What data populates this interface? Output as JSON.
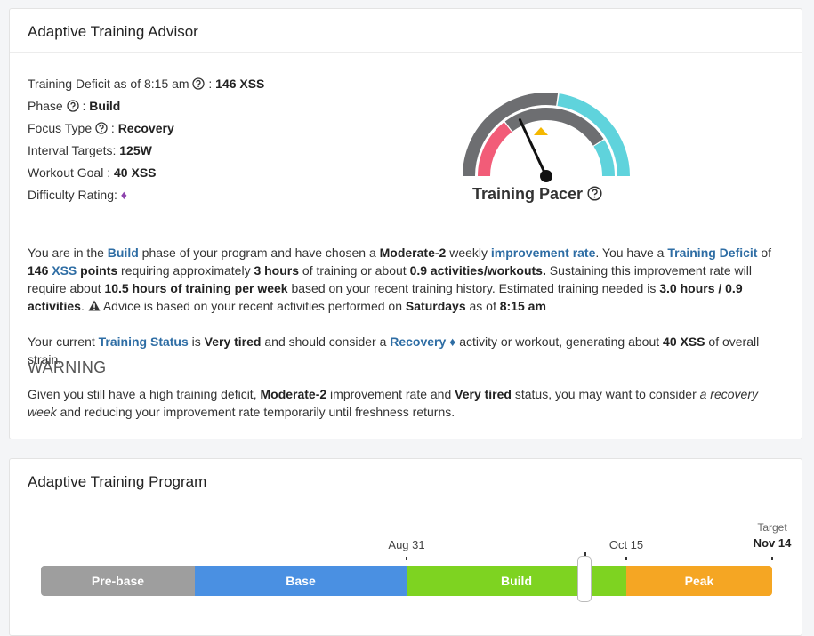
{
  "advisor": {
    "title": "Adaptive Training Advisor",
    "fields": [
      {
        "label": "Training Deficit as of 8:15 am",
        "separator": ":",
        "value": "146 XSS"
      },
      {
        "label": "Phase",
        "separator": ":",
        "value": "Build"
      },
      {
        "label": "Focus Type",
        "separator": ":",
        "value": "Recovery"
      },
      {
        "label": "Interval Targets:",
        "value": "125W"
      },
      {
        "label": "Workout Goal :",
        "value": "40 XSS"
      },
      {
        "label": "Difficulty Rating:",
        "value": "♦"
      }
    ],
    "pacer": "Training Pacer",
    "paragraph1": [
      "You are in the ",
      "Build",
      " phase of your program and have chosen a ",
      "Moderate-2",
      " weekly ",
      "improvement rate",
      ". You have a ",
      "Training Deficit",
      " of ",
      "146 ",
      "XSS",
      " points",
      " requiring approximately ",
      "3 hours",
      " of training or about ",
      "0.9 activities/workouts.",
      " Sustaining this improvement rate will require about ",
      "10.5 hours of training per week",
      " based on your recent training history. Estimated training needed is ",
      "3.0 hours / 0.9 activities",
      ".",
      " Advice is based on your recent activities performed on ",
      "Saturdays",
      " as of ",
      "8:15 am"
    ],
    "paragraph2": [
      "Your current ",
      "Training Status",
      " is ",
      "Very tired",
      " and should consider a ",
      "Recovery",
      " ♦",
      " activity or workout, generating about ",
      "40 XSS",
      " of overall strain."
    ],
    "warning": "WARNING",
    "paragraph3": [
      "Given you still have a high training deficit, ",
      "Moderate-2",
      " improvement rate and ",
      "Very tired",
      " status, you may want to consider ",
      "a recovery week",
      " and reducing your improvement rate temporarily until freshness returns."
    ]
  },
  "program": {
    "title": "Adaptive Training Program",
    "phases": [
      "Pre-base",
      "Base",
      "Build",
      "Peak"
    ],
    "dates": [
      "Aug 31",
      "Oct 15"
    ],
    "target": {
      "label": "Target",
      "date": "Nov 14"
    }
  }
}
